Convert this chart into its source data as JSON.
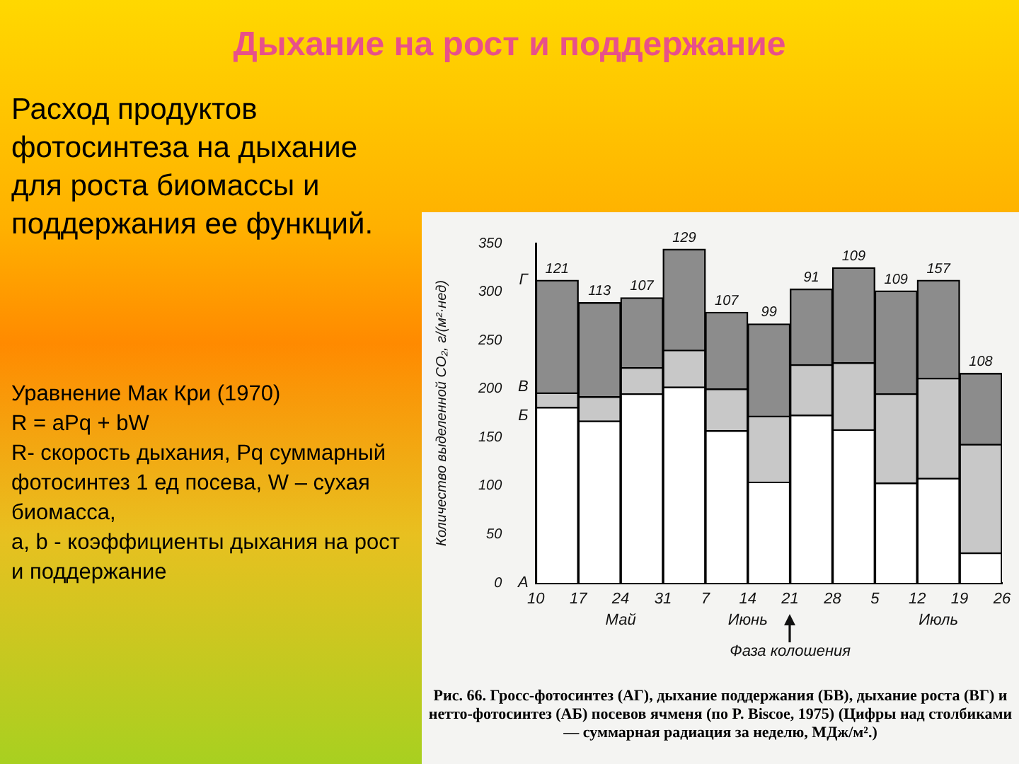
{
  "chart_data": {
    "type": "bar",
    "stacked": true,
    "title": "Дыхание на рост и поддержание",
    "ylabel": "Количество выделенной CO₂, г/(м²·нед)",
    "categories": [
      null,
      null,
      null,
      null,
      null,
      null,
      null,
      null,
      null,
      null,
      null
    ],
    "ylim": [
      0,
      350
    ],
    "yticks": [
      0,
      50,
      100,
      150,
      200,
      250,
      300,
      350
    ],
    "series": [
      {
        "color": "#ffffff",
        "values": [
          181,
          167,
          195,
          202,
          157,
          104,
          173,
          158,
          103,
          108,
          31
        ]
      },
      {
        "color": "#c8c8c8",
        "values": [
          15,
          25,
          27,
          38,
          43,
          68,
          52,
          69,
          92,
          103,
          112
        ]
      },
      {
        "color": "#8c8c8c",
        "values": [
          116,
          97,
          72,
          104,
          79,
          95,
          78,
          98,
          106,
          101,
          73
        ]
      }
    ],
    "annotations": [
      "Расход продуктов фотосинтеза на дыхание для роста биомассы и поддержания ее функций.",
      "Уравнение Мак Кри (1970)\nR = aPq + bW\nR- скорость дыхания, Pq суммарный фотосинтез 1 ед посева, W – сухая биомасса,\na, b - коэффициенты дыхания на рост и поддержание",
      "Рис. 66. Гросс-фотосинтез (АГ), дыхание поддержания (БВ), дыхание роста (ВГ) и нетто-фотосинтез (АБ) посевов ячменя (по P. Biscoe, 1975) (Цифры над столбиками — суммарная радиация за неделю, МДж/м².)",
      "10",
      "17",
      "24",
      "31",
      "7",
      "14",
      "21",
      "28",
      "5",
      "12",
      "19",
      "26",
      "121",
      "113",
      "107",
      "129",
      "107",
      "99",
      "91",
      "109",
      "109",
      "157",
      "108",
      "Май",
      "Июнь",
      "Июль",
      "Фаза колошения",
      "Г",
      "В",
      "Б",
      "А"
    ],
    "grid": false,
    "legend": false
  }
}
